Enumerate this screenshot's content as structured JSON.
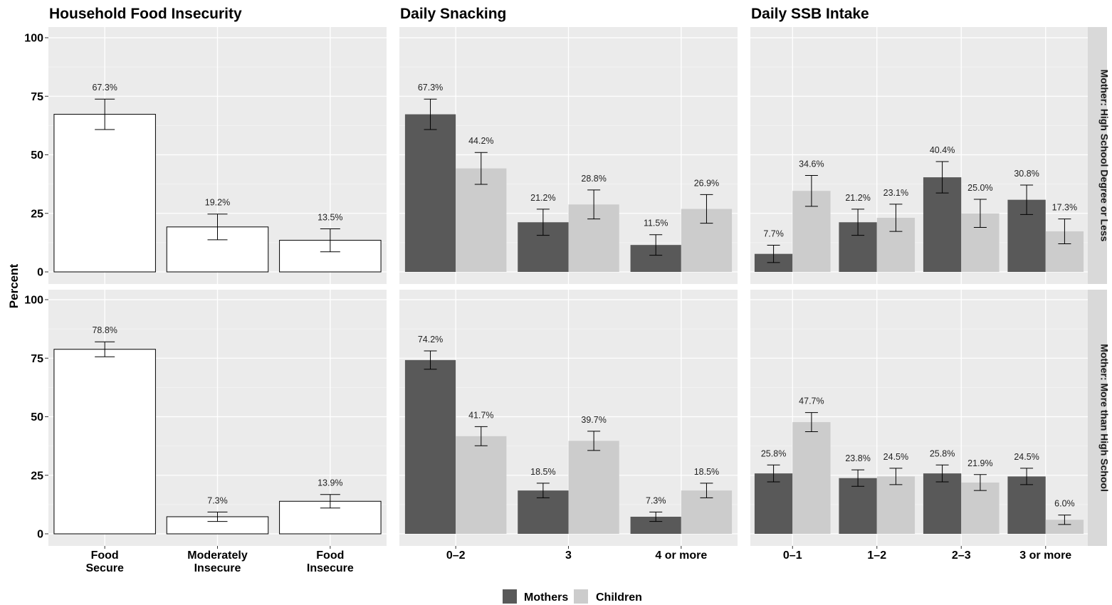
{
  "chart_data": {
    "type": "bar",
    "ylabel": "Percent",
    "ylim": [
      0,
      100
    ],
    "yticks": [
      0,
      25,
      50,
      75,
      100
    ],
    "rows": [
      "Mother: High School Degree or Less",
      "Mother: More than High School"
    ],
    "legend": {
      "position": "bottom",
      "entries": [
        "Mothers",
        "Children"
      ]
    },
    "colors": {
      "Mothers": "#595959",
      "Children": "#cccccc",
      "single": "#ffffff",
      "panel_bg": "#ebebeb",
      "strip_bg": "#d9d9d9"
    },
    "grid": true,
    "panels": [
      {
        "title": "Household Food Insecurity",
        "categories": [
          "Food\nSecure",
          "Moderately\nInsecure",
          "Food\nInsecure"
        ],
        "series": [
          {
            "values": [
              [
                67.3,
                19.2,
                13.5
              ],
              [
                78.8,
                7.3,
                13.9
              ]
            ],
            "labels": [
              [
                "67.3%",
                "19.2%",
                "13.5%"
              ],
              [
                "78.8%",
                "7.3%",
                "13.9%"
              ]
            ],
            "errors": [
              [
                [
                  60.8,
                  73.8
                ],
                [
                  13.7,
                  24.7
                ],
                [
                  8.6,
                  18.4
                ]
              ],
              [
                [
                  75.6,
                  82.0
                ],
                [
                  5.3,
                  9.3
                ],
                [
                  11.0,
                  16.8
                ]
              ]
            ]
          }
        ]
      },
      {
        "title": "Daily Snacking",
        "categories": [
          "0–2",
          "3",
          "4 or more"
        ],
        "series": [
          {
            "name": "Mothers",
            "values": [
              [
                67.3,
                21.2,
                11.5
              ],
              [
                74.2,
                18.5,
                7.3
              ]
            ],
            "labels": [
              [
                "67.3%",
                "21.2%",
                "11.5%"
              ],
              [
                "74.2%",
                "18.5%",
                "7.3%"
              ]
            ],
            "errors": [
              [
                [
                  60.8,
                  73.8
                ],
                [
                  15.6,
                  26.8
                ],
                [
                  7.1,
                  15.9
                ]
              ],
              [
                [
                  70.3,
                  78.1
                ],
                [
                  15.4,
                  21.6
                ],
                [
                  5.3,
                  9.3
                ]
              ]
            ]
          },
          {
            "name": "Children",
            "values": [
              [
                44.2,
                28.8,
                26.9
              ],
              [
                41.7,
                39.7,
                18.5
              ]
            ],
            "labels": [
              [
                "44.2%",
                "28.8%",
                "26.9%"
              ],
              [
                "41.7%",
                "39.7%",
                "18.5%"
              ]
            ],
            "errors": [
              [
                [
                  37.4,
                  51.0
                ],
                [
                  22.6,
                  35.0
                ],
                [
                  20.8,
                  33.0
                ]
              ],
              [
                [
                  37.6,
                  45.8
                ],
                [
                  35.6,
                  43.8
                ],
                [
                  15.4,
                  21.6
                ]
              ]
            ]
          }
        ]
      },
      {
        "title": "Daily SSB Intake",
        "categories": [
          "0–1",
          "1–2",
          "2–3",
          "3 or more"
        ],
        "series": [
          {
            "name": "Mothers",
            "values": [
              [
                7.7,
                21.2,
                40.4,
                30.8
              ],
              [
                25.8,
                23.8,
                25.8,
                24.5
              ]
            ],
            "labels": [
              [
                "7.7%",
                "21.2%",
                "40.4%",
                "30.8%"
              ],
              [
                "25.8%",
                "23.8%",
                "25.8%",
                "24.5%"
              ]
            ],
            "errors": [
              [
                [
                  4.0,
                  11.4
                ],
                [
                  15.6,
                  26.8
                ],
                [
                  33.7,
                  47.1
                ],
                [
                  24.5,
                  37.1
                ]
              ],
              [
                [
                  22.2,
                  29.4
                ],
                [
                  20.3,
                  27.3
                ],
                [
                  22.2,
                  29.4
                ],
                [
                  21.0,
                  28.0
                ]
              ]
            ]
          },
          {
            "name": "Children",
            "values": [
              [
                34.6,
                23.1,
                25.0,
                17.3
              ],
              [
                47.7,
                24.5,
                21.9,
                6.0
              ]
            ],
            "labels": [
              [
                "34.6%",
                "23.1%",
                "25.0%",
                "17.3%"
              ],
              [
                "47.7%",
                "24.5%",
                "21.9%",
                "6.0%"
              ]
            ],
            "errors": [
              [
                [
                  28.0,
                  41.2
                ],
                [
                  17.3,
                  28.9
                ],
                [
                  19.0,
                  31.0
                ],
                [
                  12.0,
                  22.6
                ]
              ],
              [
                [
                  43.6,
                  51.8
                ],
                [
                  21.0,
                  28.0
                ],
                [
                  18.5,
                  25.3
                ],
                [
                  4.0,
                  8.0
                ]
              ]
            ]
          }
        ]
      }
    ]
  }
}
